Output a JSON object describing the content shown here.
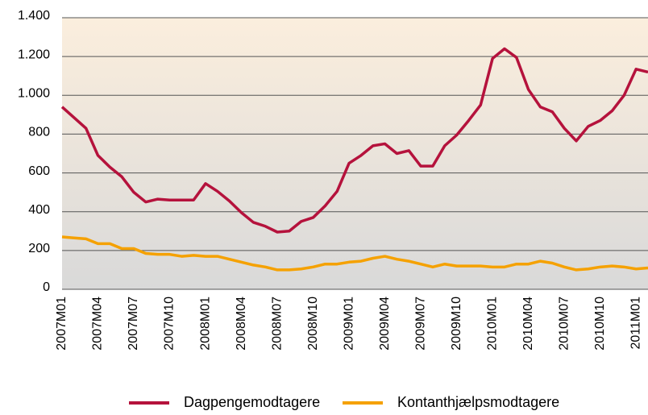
{
  "chart_data": {
    "type": "line",
    "categories": [
      "2007M01",
      null,
      null,
      "2007M04",
      null,
      null,
      "2007M07",
      null,
      null,
      "2007M10",
      null,
      null,
      "2008M01",
      null,
      null,
      "2008M04",
      null,
      null,
      "2008M07",
      null,
      null,
      "2008M10",
      null,
      null,
      "2009M01",
      null,
      null,
      "2009M04",
      null,
      null,
      "2009M07",
      null,
      null,
      "2009M10",
      null,
      null,
      "2010M01",
      null,
      null,
      "2010M04",
      null,
      null,
      "2010M07",
      null,
      null,
      "2010M10",
      null,
      null,
      "2011M01",
      null
    ],
    "series": [
      {
        "name": "Dagpengemodtagere",
        "color": "#b5123c",
        "values": [
          940,
          885,
          830,
          690,
          630,
          580,
          500,
          450,
          465,
          460,
          460,
          460,
          545,
          505,
          455,
          395,
          345,
          325,
          295,
          300,
          350,
          370,
          430,
          505,
          650,
          690,
          740,
          750,
          700,
          715,
          635,
          635,
          740,
          795,
          870,
          950,
          1190,
          1240,
          1195,
          1030,
          940,
          915,
          830,
          765,
          840,
          870,
          920,
          1000,
          1135,
          1120
        ]
      },
      {
        "name": "Kontanthjælpsmodtagere",
        "color": "#f5a100",
        "values": [
          270,
          265,
          260,
          235,
          235,
          210,
          210,
          185,
          180,
          180,
          170,
          175,
          170,
          170,
          155,
          140,
          125,
          115,
          100,
          100,
          105,
          115,
          130,
          130,
          140,
          145,
          160,
          170,
          155,
          145,
          130,
          115,
          130,
          120,
          120,
          120,
          115,
          115,
          130,
          130,
          145,
          135,
          115,
          100,
          105,
          115,
          120,
          115,
          105,
          110
        ]
      }
    ],
    "ylim": [
      0,
      1400
    ],
    "yticks": [
      0,
      200,
      400,
      600,
      800,
      {
        "value": 1000,
        "label": "1.000"
      },
      {
        "value": 1200,
        "label": "1.200"
      },
      {
        "value": 1400,
        "label": "1.400"
      }
    ],
    "grid": true
  }
}
